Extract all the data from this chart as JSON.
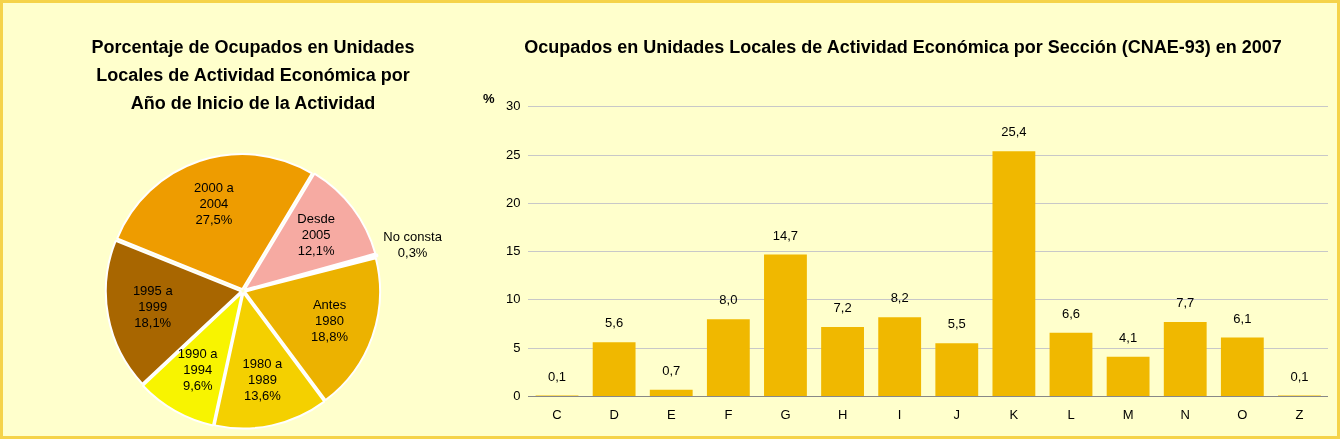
{
  "chart_data": [
    {
      "type": "pie",
      "title": "Porcentaje de Ocupados en Unidades Locales de Actividad Económica por Año de Inicio de la Actividad",
      "categories": [
        "Desde 2005",
        "No consta",
        "Antes 1980",
        "1980 a 1989",
        "1990 a 1994",
        "1995 a 1999",
        "2000 a 2004"
      ],
      "values": [
        12.1,
        0.3,
        18.8,
        13.6,
        9.6,
        18.1,
        27.5
      ],
      "colors": [
        "#f6aaa2",
        "#cc0000",
        "#ecb200",
        "#f4d000",
        "#f8f400",
        "#a86600",
        "#ee9c00"
      ],
      "value_labels": [
        "12,1%",
        "0,3%",
        "18,8%",
        "13,6%",
        "9,6%",
        "18,1%",
        "27,5%"
      ],
      "legend": false
    },
    {
      "type": "bar",
      "title": "Ocupados en Unidades Locales de Actividad Económica por Sección (CNAE-93)  en 2007",
      "ylabel": "%",
      "categories": [
        "C",
        "D",
        "E",
        "F",
        "G",
        "H",
        "I",
        "J",
        "K",
        "L",
        "M",
        "N",
        "O",
        "Z"
      ],
      "values": [
        0.1,
        5.6,
        0.7,
        8.0,
        14.7,
        7.2,
        8.2,
        5.5,
        25.4,
        6.6,
        4.1,
        7.7,
        6.1,
        0.1
      ],
      "color": "#f0b800",
      "value_labels": [
        "0,1",
        "5,6",
        "0,7",
        "8,0",
        "14,7",
        "7,2",
        "8,2",
        "5,5",
        "25,4",
        "6,6",
        "4,1",
        "7,7",
        "6,1",
        "0,1"
      ],
      "ylim": [
        0,
        30
      ],
      "yticks": [
        0,
        5,
        10,
        15,
        20,
        25,
        30
      ],
      "grid": "y",
      "legend": false
    }
  ]
}
